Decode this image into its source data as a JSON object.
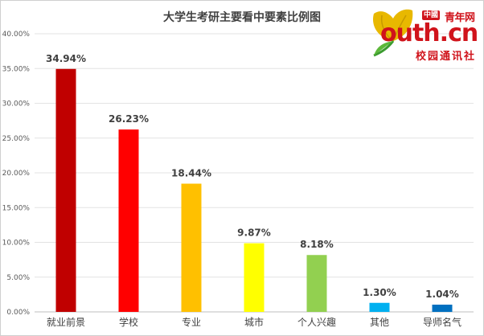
{
  "logo": {
    "cn_mark": "中國",
    "top_text": "青年网",
    "main_text": "outh.cn",
    "sub_text": "校园通讯社"
  },
  "chart_data": {
    "type": "bar",
    "title": "大学生考研主要看中要素比例图",
    "categories": [
      "就业前景",
      "学校",
      "专业",
      "城市",
      "个人兴趣",
      "其他",
      "导师名气"
    ],
    "values": [
      34.94,
      26.23,
      18.44,
      9.87,
      8.18,
      1.3,
      1.04
    ],
    "data_labels": [
      "34.94%",
      "26.23%",
      "18.44%",
      "9.87%",
      "8.18%",
      "1.30%",
      "1.04%"
    ],
    "colors": [
      "#c00000",
      "#ff0000",
      "#ffc000",
      "#ffff00",
      "#92d050",
      "#00b0f0",
      "#0070c0"
    ],
    "ylim": [
      0,
      40
    ],
    "yticks": [
      0,
      5,
      10,
      15,
      20,
      25,
      30,
      35,
      40
    ],
    "ytick_labels": [
      "0.00%",
      "5.00%",
      "10.00%",
      "15.00%",
      "20.00%",
      "25.00%",
      "30.00%",
      "35.00%",
      "40.00%"
    ],
    "grid": true,
    "legend": "none",
    "xlabel": "",
    "ylabel": ""
  }
}
